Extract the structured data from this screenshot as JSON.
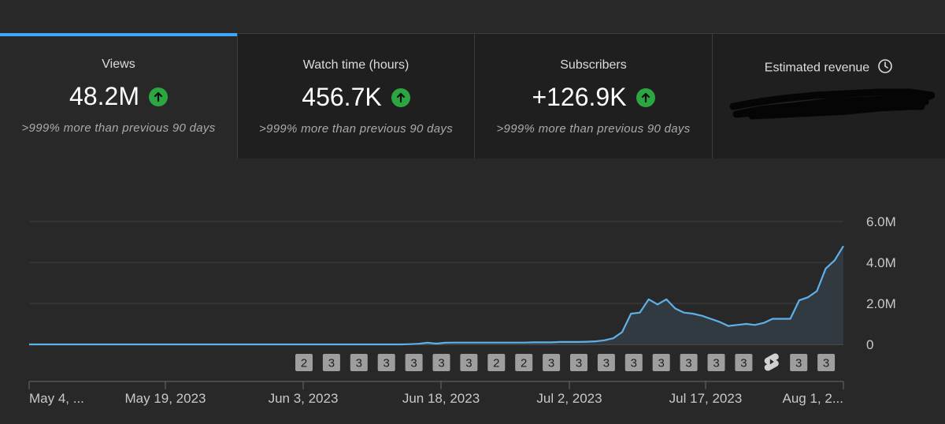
{
  "metrics": [
    {
      "label": "Views",
      "value": "48.2M",
      "compare": ">999% more than previous 90 days",
      "trend": "up"
    },
    {
      "label": "Watch time (hours)",
      "value": "456.7K",
      "compare": ">999% more than previous 90 days",
      "trend": "up"
    },
    {
      "label": "Subscribers",
      "value": "+126.9K",
      "compare": ">999% more than previous 90 days",
      "trend": "up"
    },
    {
      "label": "Estimated revenue",
      "value_hidden": true,
      "icon": "clock-icon"
    }
  ],
  "colors": {
    "accent": "#3ea6ff",
    "up": "#2ba640",
    "line": "#5eb1e8"
  },
  "chart_data": {
    "type": "area",
    "metric": "Views",
    "x_tick_labels": [
      "May 4, ...",
      "May 19, 2023",
      "Jun 3, 2023",
      "Jun 18, 2023",
      "Jul 2, 2023",
      "Jul 17, 2023",
      "Aug 1, 2..."
    ],
    "y_tick_labels": [
      "6.0M",
      "4.0M",
      "2.0M",
      "0"
    ],
    "ylim": [
      0,
      6000000
    ],
    "grid": true,
    "values": [
      0,
      0,
      0,
      0,
      0,
      0,
      0,
      0,
      0,
      0,
      0,
      0,
      0,
      0,
      0,
      0,
      0,
      0,
      0,
      0,
      0,
      0,
      0,
      0,
      0,
      0,
      0,
      0,
      0,
      0,
      0,
      0,
      0,
      0,
      0,
      0,
      0,
      0,
      0,
      0,
      0,
      0,
      0,
      10000,
      30000,
      80000,
      40000,
      80000,
      90000,
      90000,
      90000,
      90000,
      90000,
      90000,
      90000,
      90000,
      90000,
      100000,
      100000,
      100000,
      120000,
      120000,
      120000,
      130000,
      150000,
      200000,
      300000,
      600000,
      1500000,
      1550000,
      2200000,
      1950000,
      2200000,
      1750000,
      1550000,
      1500000,
      1400000,
      1250000,
      1100000,
      900000,
      950000,
      1000000,
      950000,
      1050000,
      1250000,
      1250000,
      1250000,
      2150000,
      2300000,
      2600000,
      3700000,
      4100000,
      4800000
    ],
    "annotations": [
      "2",
      "3",
      "3",
      "3",
      "3",
      "3",
      "3",
      "2",
      "2",
      "3",
      "3",
      "3",
      "3",
      "3",
      "3",
      "3",
      "3",
      "shorts-icon",
      "3",
      "3"
    ]
  }
}
